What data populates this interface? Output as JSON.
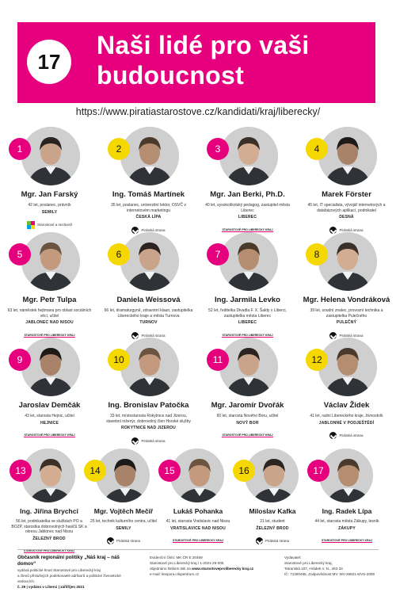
{
  "header": {
    "issue_number": "17",
    "title_line1": "Naši lidé pro vaši",
    "title_line2": "budoucnost"
  },
  "url": "https://www.piratiastarostove.cz/kandidati/kraj/liberecky/",
  "colors": {
    "accent": "#e6007e",
    "highlight": "#f5d800"
  },
  "candidates": [
    {
      "number": "1",
      "name": "Mgr. Jan Farský",
      "desc": "42 let, poslanec, právník",
      "town": "SEMILY",
      "party": "Starostové a nezávislí",
      "logo": "sn-logo"
    },
    {
      "number": "2",
      "name": "Ing. Tomáš Martínek",
      "desc": "35 let, poslanec, univerzitní lektor, OSVČ v internetovém marketingu",
      "town": "ČESKÁ LÍPA",
      "party": "Pirátská strana",
      "logo": "pirate-logo"
    },
    {
      "number": "3",
      "name": "Mgr. Jan Berki, Ph.D.",
      "desc": "40 let, vysokoškolský pedagog, zastupitel města Liberec",
      "town": "LIBEREC",
      "party": "STAROSTOVÉ PRO LIBERECKÝ KRAJ",
      "logo": "stan-logo"
    },
    {
      "number": "4",
      "name": "Marek Förster",
      "desc": "45 let, IT specialista, vývojář internetových a databázových aplikací, podnikatel",
      "town": "DESNÁ",
      "party": "Pirátská strana",
      "logo": "pirate-logo"
    },
    {
      "number": "5",
      "name": "Mgr. Petr Tulpa",
      "desc": "63 let, náměstek hejtmana pro oblast sociálních věcí, učitel",
      "town": "JABLONEC NAD NISOU",
      "party": "STAROSTOVÉ PRO LIBERECKÝ KRAJ",
      "logo": "stan-logo"
    },
    {
      "number": "6",
      "name": "Daniela Weissová",
      "desc": "66 let, dramaturgyně, zdravotní klaun, zastupitelka Libereckého kraje a města Turnova",
      "town": "TURNOV",
      "party": "Pirátská strana",
      "logo": "pirate-logo"
    },
    {
      "number": "7",
      "name": "Ing. Jarmila Levko",
      "desc": "52 let, ředitelka Divadla F. X. Šaldy v Liberci, zastupitelka města Liberec",
      "town": "LIBEREC",
      "party": "STAROSTOVÉ PRO LIBERECKÝ KRAJ",
      "logo": "stan-logo"
    },
    {
      "number": "8",
      "name": "Mgr. Helena Vondráková",
      "desc": "39 let, soudní znalec, provozní technika a zastupitelka Pulečného",
      "town": "PULEČNÝ",
      "party": "Pirátská strana",
      "logo": "pirate-logo"
    },
    {
      "number": "9",
      "name": "Jaroslav Demčák",
      "desc": "43 let, starosta Hejnic, učitel",
      "town": "HEJNICE",
      "party": "STAROSTOVÉ PRO LIBERECKÝ KRAJ",
      "logo": "stan-logo"
    },
    {
      "number": "10",
      "name": "Ing. Bronislav Patočka",
      "desc": "33 let, místostarosta Rokytnice nad Jizerou, stavební inženýr, dobrovolný člen Horské služby",
      "town": "ROKYTNICE NAD JIZEROU",
      "party": "Pirátská strana",
      "logo": "pirate-logo"
    },
    {
      "number": "11",
      "name": "Mgr. Jaromír Dvořák",
      "desc": "60 let, starosta Nového Boru, učitel",
      "town": "NOVÝ BOR",
      "party": "STAROSTOVÉ PRO LIBERECKÝ KRAJ",
      "logo": "stan-logo"
    },
    {
      "number": "12",
      "name": "Václav Židek",
      "desc": "41 let, radní Libereckého kraje, živnostník",
      "town": "JABLONNÉ V PODJEŠTĚDÍ",
      "party": "Pirátská strana",
      "logo": "pirate-logo"
    },
    {
      "number": "13",
      "name": "Ing. Jiřina Brychcí",
      "desc": "56 let, podnikatelka ve službách PO a BOZP, starostka dobrovolných hasičů SK a okresu Jablonec nad Nisou",
      "town": "ŽELEZNÝ BROD",
      "party": "STAROSTOVÉ PRO LIBERECKÝ KRAJ",
      "logo": "stan-logo"
    },
    {
      "number": "14",
      "name": "Mgr. Vojtěch Mečíř",
      "desc": "25 let, technik kulturního centra, učitel",
      "town": "SEMILY",
      "party": "Pirátská strana",
      "logo": "pirate-logo"
    },
    {
      "number": "15",
      "name": "Lukáš Pohanka",
      "desc": "41 let, starosta Vratislavic nad Nisou",
      "town": "VRATISLAVICE NAD NISOU",
      "party": "STAROSTOVÉ PRO LIBERECKÝ KRAJ",
      "logo": "stan-logo"
    },
    {
      "number": "16",
      "name": "Miloslav Kafka",
      "desc": "21 let, student",
      "town": "ŽELEZNÝ BROD",
      "party": "Pirátská strana",
      "logo": "pirate-logo"
    },
    {
      "number": "17",
      "name": "Ing. Radek Lípa",
      "desc": "44 let, starosta města Zákupy, lesník",
      "town": "ZÁKUPY",
      "party": "STAROSTOVÉ PRO LIBERECKÝ KRAJ",
      "logo": "stan-logo"
    }
  ],
  "footer": {
    "col1": {
      "title": "Občasník regionální politiky „Náš kraj – náš domov“",
      "line1": "vydává politické hnutí Starostové pro Liberecký kraj",
      "line2": "a členů příslušných podekonaelé adrfaorů a politické živnostické vedoucích.",
      "issue": "č. 29 | vydáno v Liberci | září/říjen 2021"
    },
    "col2": {
      "line1": "Evidenční číslo: MK ČR E 20469",
      "line2": "Starostové pro Liberecký kraj / 1-2021-25-005",
      "line3_prefix": "objednáno lístkem tisk na ",
      "line3_link": "www.starostoveproliberecky kraj.cz",
      "line4": "e-mail: liespora.cilopentrum.cz"
    },
    "col3": {
      "line1": "Vydavatel:",
      "line2": "Starostové pro Liberecký kraj,",
      "line3": "Tatranská 107, Hrádek n. N., 463 34",
      "line4": "IČ: 71300495, Zodpovědnost MV: MV-29821-6/VS-2009"
    }
  }
}
